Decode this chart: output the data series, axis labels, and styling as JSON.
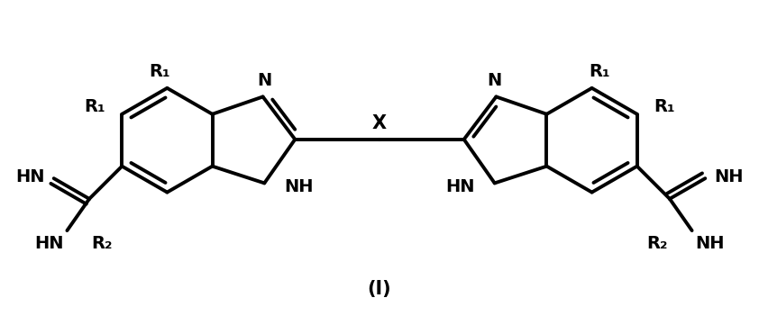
{
  "background_color": "#ffffff",
  "fig_width": 8.42,
  "fig_height": 3.61,
  "dpi": 100,
  "line_color": "#000000",
  "line_width": 2.8,
  "font_size_labels": 14,
  "font_size_compound": 15,
  "font_weight": "bold",
  "text_color": "#000000",
  "xlim": [
    0,
    10
  ],
  "ylim": [
    0,
    4.3
  ]
}
